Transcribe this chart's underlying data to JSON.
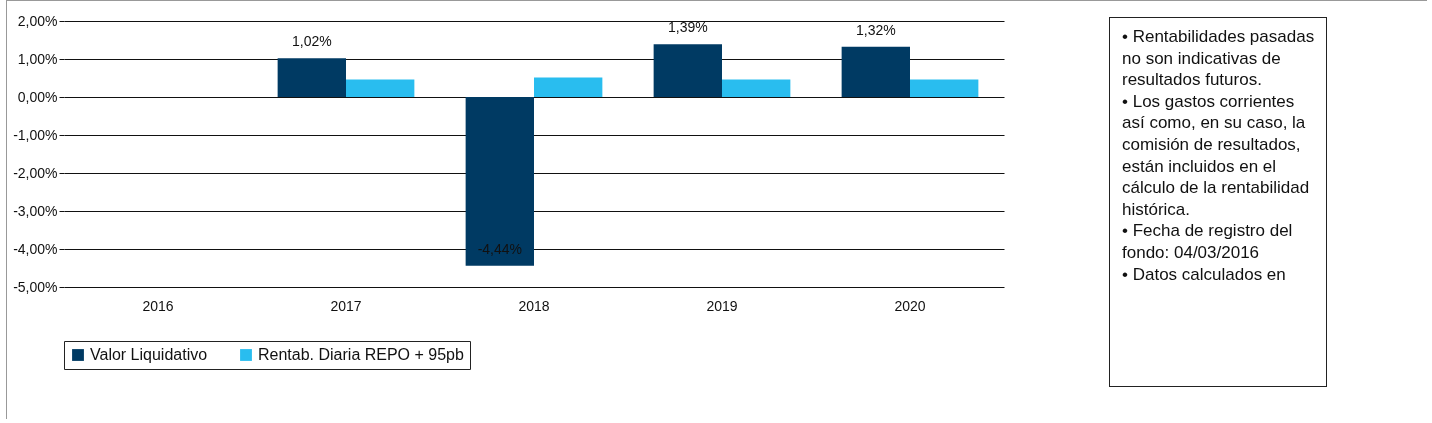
{
  "chart_data": {
    "type": "bar",
    "categories": [
      "2016",
      "2017",
      "2018",
      "2019",
      "2020"
    ],
    "series": [
      {
        "name": "Valor Liquidativo",
        "color": "#003a63",
        "values": [
          null,
          1.02,
          -4.44,
          1.39,
          1.32
        ],
        "value_labels": [
          null,
          "1,02%",
          "-4,44%",
          "1,39%",
          "1,32%"
        ]
      },
      {
        "name": "Rentab. Diaria REPO + 95pb",
        "color": "#29bdef",
        "values": [
          null,
          0.46,
          0.51,
          0.46,
          0.46
        ]
      }
    ],
    "ylim": [
      -5,
      2
    ],
    "yticks": [
      {
        "value": -5,
        "label": "-5,00%"
      },
      {
        "value": -4,
        "label": "-4,00%"
      },
      {
        "value": -3,
        "label": "-3,00%"
      },
      {
        "value": -2,
        "label": "-2,00%"
      },
      {
        "value": -1,
        "label": "-1,00%"
      },
      {
        "value": 0,
        "label": "0,00%"
      },
      {
        "value": 1,
        "label": "1,00%"
      },
      {
        "value": 2,
        "label": "2,00%"
      }
    ],
    "grid": "y",
    "legend": "bottom",
    "annotations": [
      "• Rentabilidades pasadas no son indicativas de resultados futuros.",
      "• Los gastos corrientes así como, en su caso, la comisión de resultados, están incluidos en el cálculo de la rentabilidad histórica.",
      "• Fecha de registro del fondo: 04/03/2016",
      "• Datos calculados en"
    ]
  }
}
